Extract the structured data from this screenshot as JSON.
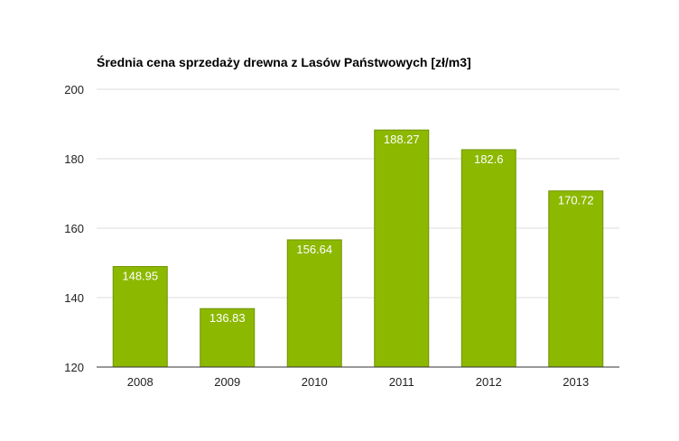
{
  "chart_data": {
    "type": "bar",
    "title": "Średnia cena sprzedaży drewna z Lasów Państwowych [zł/m3]",
    "xlabel": "",
    "ylabel": "",
    "categories": [
      "2008",
      "2009",
      "2010",
      "2011",
      "2012",
      "2013"
    ],
    "values": [
      148.95,
      136.83,
      156.64,
      188.27,
      182.6,
      170.72
    ],
    "data_labels": [
      "148.95",
      "136.83",
      "156.64",
      "188.27",
      "182.6",
      "170.72"
    ],
    "ylim": [
      120,
      200
    ],
    "yticks": [
      120,
      140,
      160,
      180,
      200
    ],
    "ytick_labels": [
      "120",
      "140",
      "160",
      "180",
      "200"
    ],
    "grid": true,
    "legend": "none",
    "bar_color": "#8cb800",
    "bar_edge_color": "#6f9400"
  }
}
